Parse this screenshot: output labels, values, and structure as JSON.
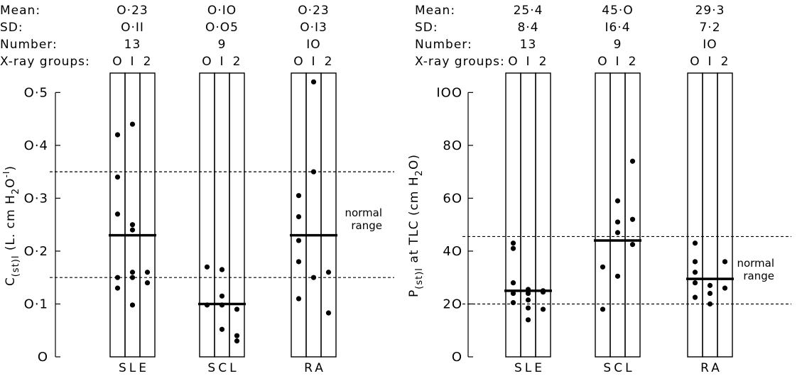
{
  "chart_data": [
    {
      "type": "scatter",
      "stat_labels": [
        "Mean:",
        "SD:",
        "Number:",
        "X-ray groups:"
      ],
      "xray_group_labels": [
        "O",
        "I",
        "2"
      ],
      "categories": [
        "SLE",
        "SCL",
        "RA"
      ],
      "ylabel": "C(st)l (L. cm H2O⁻¹)",
      "ylabel_parts": {
        "c": "C",
        "sub": "(st)l",
        "rest": " (L. cm H",
        "sub2": "2",
        "rest2": "O",
        "sup": "-I",
        "end": ")"
      },
      "yticks": [
        {
          "v": 0,
          "label": "O"
        },
        {
          "v": 0.1,
          "label": "O·1"
        },
        {
          "v": 0.2,
          "label": "O·2"
        },
        {
          "v": 0.3,
          "label": "O·3"
        },
        {
          "v": 0.4,
          "label": "O·4"
        },
        {
          "v": 0.5,
          "label": "O·5"
        }
      ],
      "ylim": [
        0,
        0.53
      ],
      "normal_range": [
        0.15,
        0.35
      ],
      "normal_range_label": [
        "normal",
        "range"
      ],
      "normal_range_label_y": 0.255,
      "groups": [
        {
          "name": "SLE",
          "mean_label": "O·23",
          "sd_label": "O·II",
          "number_label": "13",
          "mean": 0.23,
          "points": [
            [
              0,
              0.42
            ],
            [
              0,
              0.34
            ],
            [
              0,
              0.27
            ],
            [
              0,
              0.15
            ],
            [
              0,
              0.13
            ],
            [
              1,
              0.44
            ],
            [
              1,
              0.25
            ],
            [
              1,
              0.24
            ],
            [
              1,
              0.16
            ],
            [
              1,
              0.15
            ],
            [
              1,
              0.098
            ],
            [
              2,
              0.16
            ],
            [
              2,
              0.14
            ]
          ]
        },
        {
          "name": "SCL",
          "mean_label": "O·IO",
          "sd_label": "O·O5",
          "number_label": "9",
          "mean": 0.1,
          "points": [
            [
              0,
              0.17
            ],
            [
              0,
              0.098
            ],
            [
              1,
              0.165
            ],
            [
              1,
              0.115
            ],
            [
              1,
              0.098
            ],
            [
              1,
              0.052
            ],
            [
              2,
              0.09
            ],
            [
              2,
              0.04
            ],
            [
              2,
              0.03
            ]
          ]
        },
        {
          "name": "RA",
          "mean_label": "O·23",
          "sd_label": "O·I3",
          "number_label": "IO",
          "mean": 0.23,
          "points": [
            [
              0,
              0.305
            ],
            [
              0,
              0.265
            ],
            [
              0,
              0.22
            ],
            [
              0,
              0.18
            ],
            [
              0,
              0.11
            ],
            [
              1,
              0.52
            ],
            [
              1,
              0.35
            ],
            [
              1,
              0.15
            ],
            [
              2,
              0.16
            ],
            [
              2,
              0.083
            ]
          ]
        }
      ]
    },
    {
      "type": "scatter",
      "stat_labels": [
        "Mean:",
        "SD:",
        "Number:",
        "X-ray groups:"
      ],
      "xray_group_labels": [
        "O",
        "I",
        "2"
      ],
      "categories": [
        "SLE",
        "SCL",
        "RA"
      ],
      "ylabel": "P(st)l at TLC (cm H2O)",
      "ylabel_parts": {
        "c": "P",
        "sub": "(st)l",
        "rest": " at TLC (cm H",
        "sub2": "2",
        "rest2": "O",
        "sup": "",
        "end": ")"
      },
      "yticks": [
        {
          "v": 0,
          "label": "O"
        },
        {
          "v": 20,
          "label": "2O"
        },
        {
          "v": 40,
          "label": "4O"
        },
        {
          "v": 60,
          "label": "6O"
        },
        {
          "v": 80,
          "label": "8O"
        },
        {
          "v": 100,
          "label": "IOO"
        }
      ],
      "ylim": [
        0,
        106
      ],
      "normal_range": [
        20,
        45.5
      ],
      "normal_range_label": [
        "normal",
        "range"
      ],
      "normal_range_label_y": 32,
      "groups": [
        {
          "name": "SLE",
          "mean_label": "25·4",
          "sd_label": "8·4",
          "number_label": "13",
          "mean": 25,
          "points": [
            [
              0,
              43
            ],
            [
              0,
              41
            ],
            [
              0,
              28
            ],
            [
              0,
              24
            ],
            [
              0,
              20.5
            ],
            [
              1,
              25.5
            ],
            [
              1,
              24
            ],
            [
              1,
              21.5
            ],
            [
              1,
              18.5
            ],
            [
              1,
              14
            ],
            [
              2,
              25
            ],
            [
              2,
              24.5
            ],
            [
              2,
              18
            ]
          ]
        },
        {
          "name": "SCL",
          "mean_label": "45·O",
          "sd_label": "I6·4",
          "number_label": "9",
          "mean": 44,
          "points": [
            [
              0,
              34
            ],
            [
              0,
              18
            ],
            [
              1,
              59
            ],
            [
              1,
              51
            ],
            [
              1,
              47
            ],
            [
              1,
              30.5
            ],
            [
              2,
              74
            ],
            [
              2,
              52
            ],
            [
              2,
              42.5
            ]
          ]
        },
        {
          "name": "RA",
          "mean_label": "29·3",
          "sd_label": "7·2",
          "number_label": "IO",
          "mean": 29.5,
          "points": [
            [
              0,
              43
            ],
            [
              0,
              36
            ],
            [
              0,
              32
            ],
            [
              0,
              28
            ],
            [
              0,
              22.5
            ],
            [
              1,
              27
            ],
            [
              1,
              24
            ],
            [
              1,
              20
            ],
            [
              2,
              36
            ],
            [
              2,
              26
            ]
          ]
        }
      ]
    }
  ]
}
